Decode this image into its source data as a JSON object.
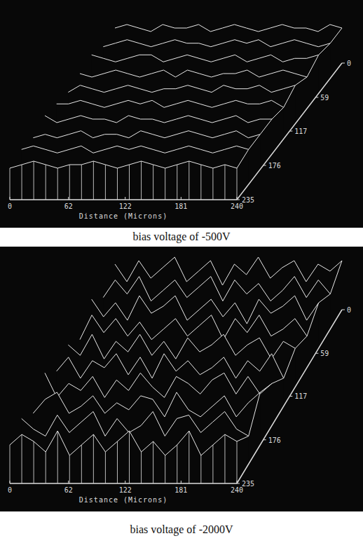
{
  "chart_data": [
    {
      "type": "surface",
      "x_label": "Distance (Microns)",
      "caption": "bias voltage of -500V",
      "color": "#e8e8e8",
      "xlim": [
        0,
        240
      ],
      "xticks": [
        0,
        62,
        122,
        181,
        240
      ],
      "ylim": [
        0,
        235
      ],
      "yticks": [
        0,
        59,
        117,
        176,
        235
      ],
      "zlim": [
        0,
        10
      ],
      "z": [
        [
          4,
          5,
          4,
          3,
          5,
          4,
          4,
          5,
          3,
          4,
          5,
          4,
          3,
          4,
          5,
          4,
          4,
          3,
          5,
          4
        ],
        [
          3,
          4,
          5,
          4,
          3,
          4,
          5,
          4,
          4,
          3,
          4,
          5,
          4,
          5,
          3,
          4,
          5,
          4,
          3,
          4
        ],
        [
          5,
          4,
          3,
          4,
          5,
          5,
          3,
          4,
          5,
          4,
          3,
          4,
          5,
          3,
          4,
          5,
          3,
          4,
          4,
          5
        ],
        [
          4,
          3,
          4,
          5,
          4,
          3,
          4,
          5,
          3,
          5,
          4,
          3,
          4,
          4,
          5,
          3,
          4,
          5,
          4,
          3
        ],
        [
          3,
          5,
          4,
          3,
          4,
          5,
          4,
          3,
          4,
          4,
          5,
          4,
          3,
          5,
          4,
          4,
          5,
          3,
          4,
          5
        ],
        [
          4,
          4,
          5,
          4,
          3,
          4,
          5,
          4,
          5,
          3,
          4,
          5,
          4,
          3,
          4,
          5,
          4,
          4,
          5,
          3
        ],
        [
          5,
          3,
          4,
          5,
          4,
          4,
          3,
          5,
          4,
          4,
          3,
          4,
          5,
          4,
          3,
          4,
          5,
          3,
          4,
          4
        ],
        [
          3,
          4,
          3,
          4,
          5,
          3,
          4,
          4,
          3,
          5,
          4,
          3,
          4,
          5,
          4,
          3,
          4,
          5,
          3,
          4
        ],
        [
          4,
          5,
          4,
          3,
          4,
          5,
          3,
          4,
          5,
          4,
          5,
          4,
          3,
          4,
          5,
          4,
          3,
          4,
          5,
          4
        ],
        [
          3,
          4,
          5,
          4,
          3,
          4,
          4,
          5,
          4,
          3,
          4,
          5,
          4,
          3,
          4,
          5,
          4,
          3,
          4,
          3
        ]
      ]
    },
    {
      "type": "surface",
      "x_label": "Distance (Microns)",
      "caption": "bias voltage of -2000V",
      "color": "#e8e8e8",
      "xlim": [
        0,
        240
      ],
      "xticks": [
        0,
        62,
        122,
        181,
        240
      ],
      "ylim": [
        0,
        235
      ],
      "yticks": [
        0,
        59,
        117,
        176,
        235
      ],
      "zlim": [
        0,
        10
      ],
      "z": [
        [
          7,
          2,
          8,
          3,
          6,
          9,
          2,
          5,
          8,
          1,
          7,
          4,
          9,
          3,
          6,
          8,
          2,
          7,
          5,
          8
        ],
        [
          3,
          8,
          4,
          9,
          2,
          5,
          8,
          3,
          6,
          9,
          2,
          8,
          4,
          7,
          2,
          5,
          9,
          3,
          8,
          4
        ],
        [
          8,
          3,
          7,
          2,
          9,
          4,
          6,
          9,
          2,
          5,
          8,
          3,
          7,
          1,
          8,
          4,
          6,
          9,
          2,
          7
        ],
        [
          2,
          9,
          4,
          8,
          3,
          7,
          2,
          5,
          8,
          3,
          6,
          9,
          2,
          8,
          4,
          9,
          3,
          5,
          8,
          3
        ],
        [
          6,
          3,
          9,
          2,
          7,
          4,
          9,
          3,
          7,
          2,
          8,
          4,
          6,
          9,
          3,
          6,
          8,
          2,
          7,
          5
        ],
        [
          4,
          8,
          2,
          7,
          5,
          9,
          3,
          8,
          2,
          9,
          4,
          7,
          3,
          5,
          8,
          2,
          7,
          4,
          9,
          2
        ],
        [
          9,
          2,
          6,
          4,
          8,
          2,
          7,
          4,
          9,
          5,
          2,
          8,
          6,
          3,
          7,
          9,
          3,
          8,
          3,
          6
        ],
        [
          3,
          7,
          9,
          3,
          5,
          8,
          3,
          6,
          4,
          8,
          7,
          2,
          9,
          4,
          2,
          5,
          8,
          2,
          6,
          9
        ],
        [
          7,
          4,
          2,
          8,
          3,
          6,
          9,
          2,
          7,
          3,
          5,
          9,
          2,
          7,
          8,
          3,
          6,
          9,
          4,
          2
        ],
        [
          5,
          8,
          6,
          3,
          9,
          2,
          5,
          8,
          3,
          6,
          9,
          3,
          6,
          2,
          5,
          9,
          2,
          5,
          8,
          6
        ]
      ]
    }
  ]
}
